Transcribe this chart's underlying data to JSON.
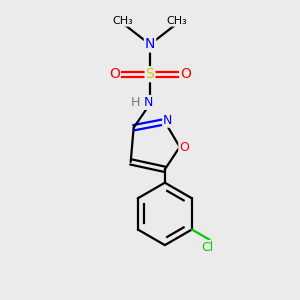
{
  "background_color": "#ebebeb",
  "bond_color": "#000000",
  "atom_colors": {
    "N": "#0000ff",
    "O": "#ff0000",
    "S": "#cccc00",
    "Cl": "#00cc00",
    "H": "#777777",
    "C": "#000000"
  },
  "lw": 1.6
}
